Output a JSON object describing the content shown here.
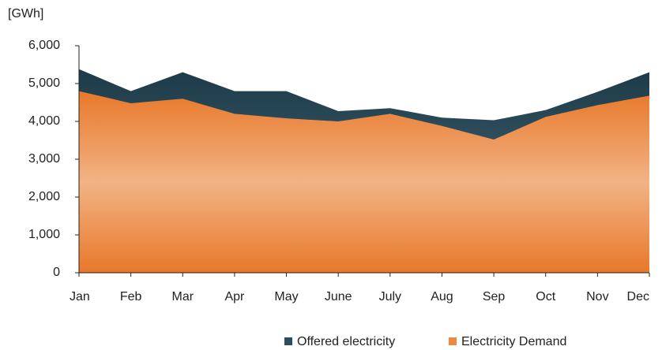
{
  "chart_data": {
    "type": "area",
    "y_label": "[GWh]",
    "categories": [
      "Jan",
      "Feb",
      "Mar",
      "Apr",
      "May",
      "June",
      "July",
      "Aug",
      "Sep",
      "Oct",
      "Nov",
      "Dec"
    ],
    "series": [
      {
        "name": "Offered electricity",
        "color": "#2b4d5c",
        "values": [
          5380,
          4800,
          5300,
          4800,
          4800,
          4270,
          4350,
          4100,
          4030,
          4300,
          4780,
          5300
        ]
      },
      {
        "name": "Electricity Demand",
        "color": "#ec8a45",
        "values": [
          4800,
          4480,
          4600,
          4200,
          4080,
          4000,
          4200,
          3880,
          3520,
          4120,
          4430,
          4680
        ]
      }
    ],
    "ylim": [
      0,
      6000
    ],
    "yticks": [
      0,
      {
        "value": 1000,
        "label": "1,000"
      },
      {
        "value": 2000,
        "label": "2,000"
      },
      {
        "value": 3000,
        "label": "3,000"
      },
      {
        "value": 4000,
        "label": "4,000"
      },
      {
        "value": 5000,
        "label": "5,000"
      },
      {
        "value": 6000,
        "label": "6,000"
      }
    ],
    "legend": "bottom"
  }
}
